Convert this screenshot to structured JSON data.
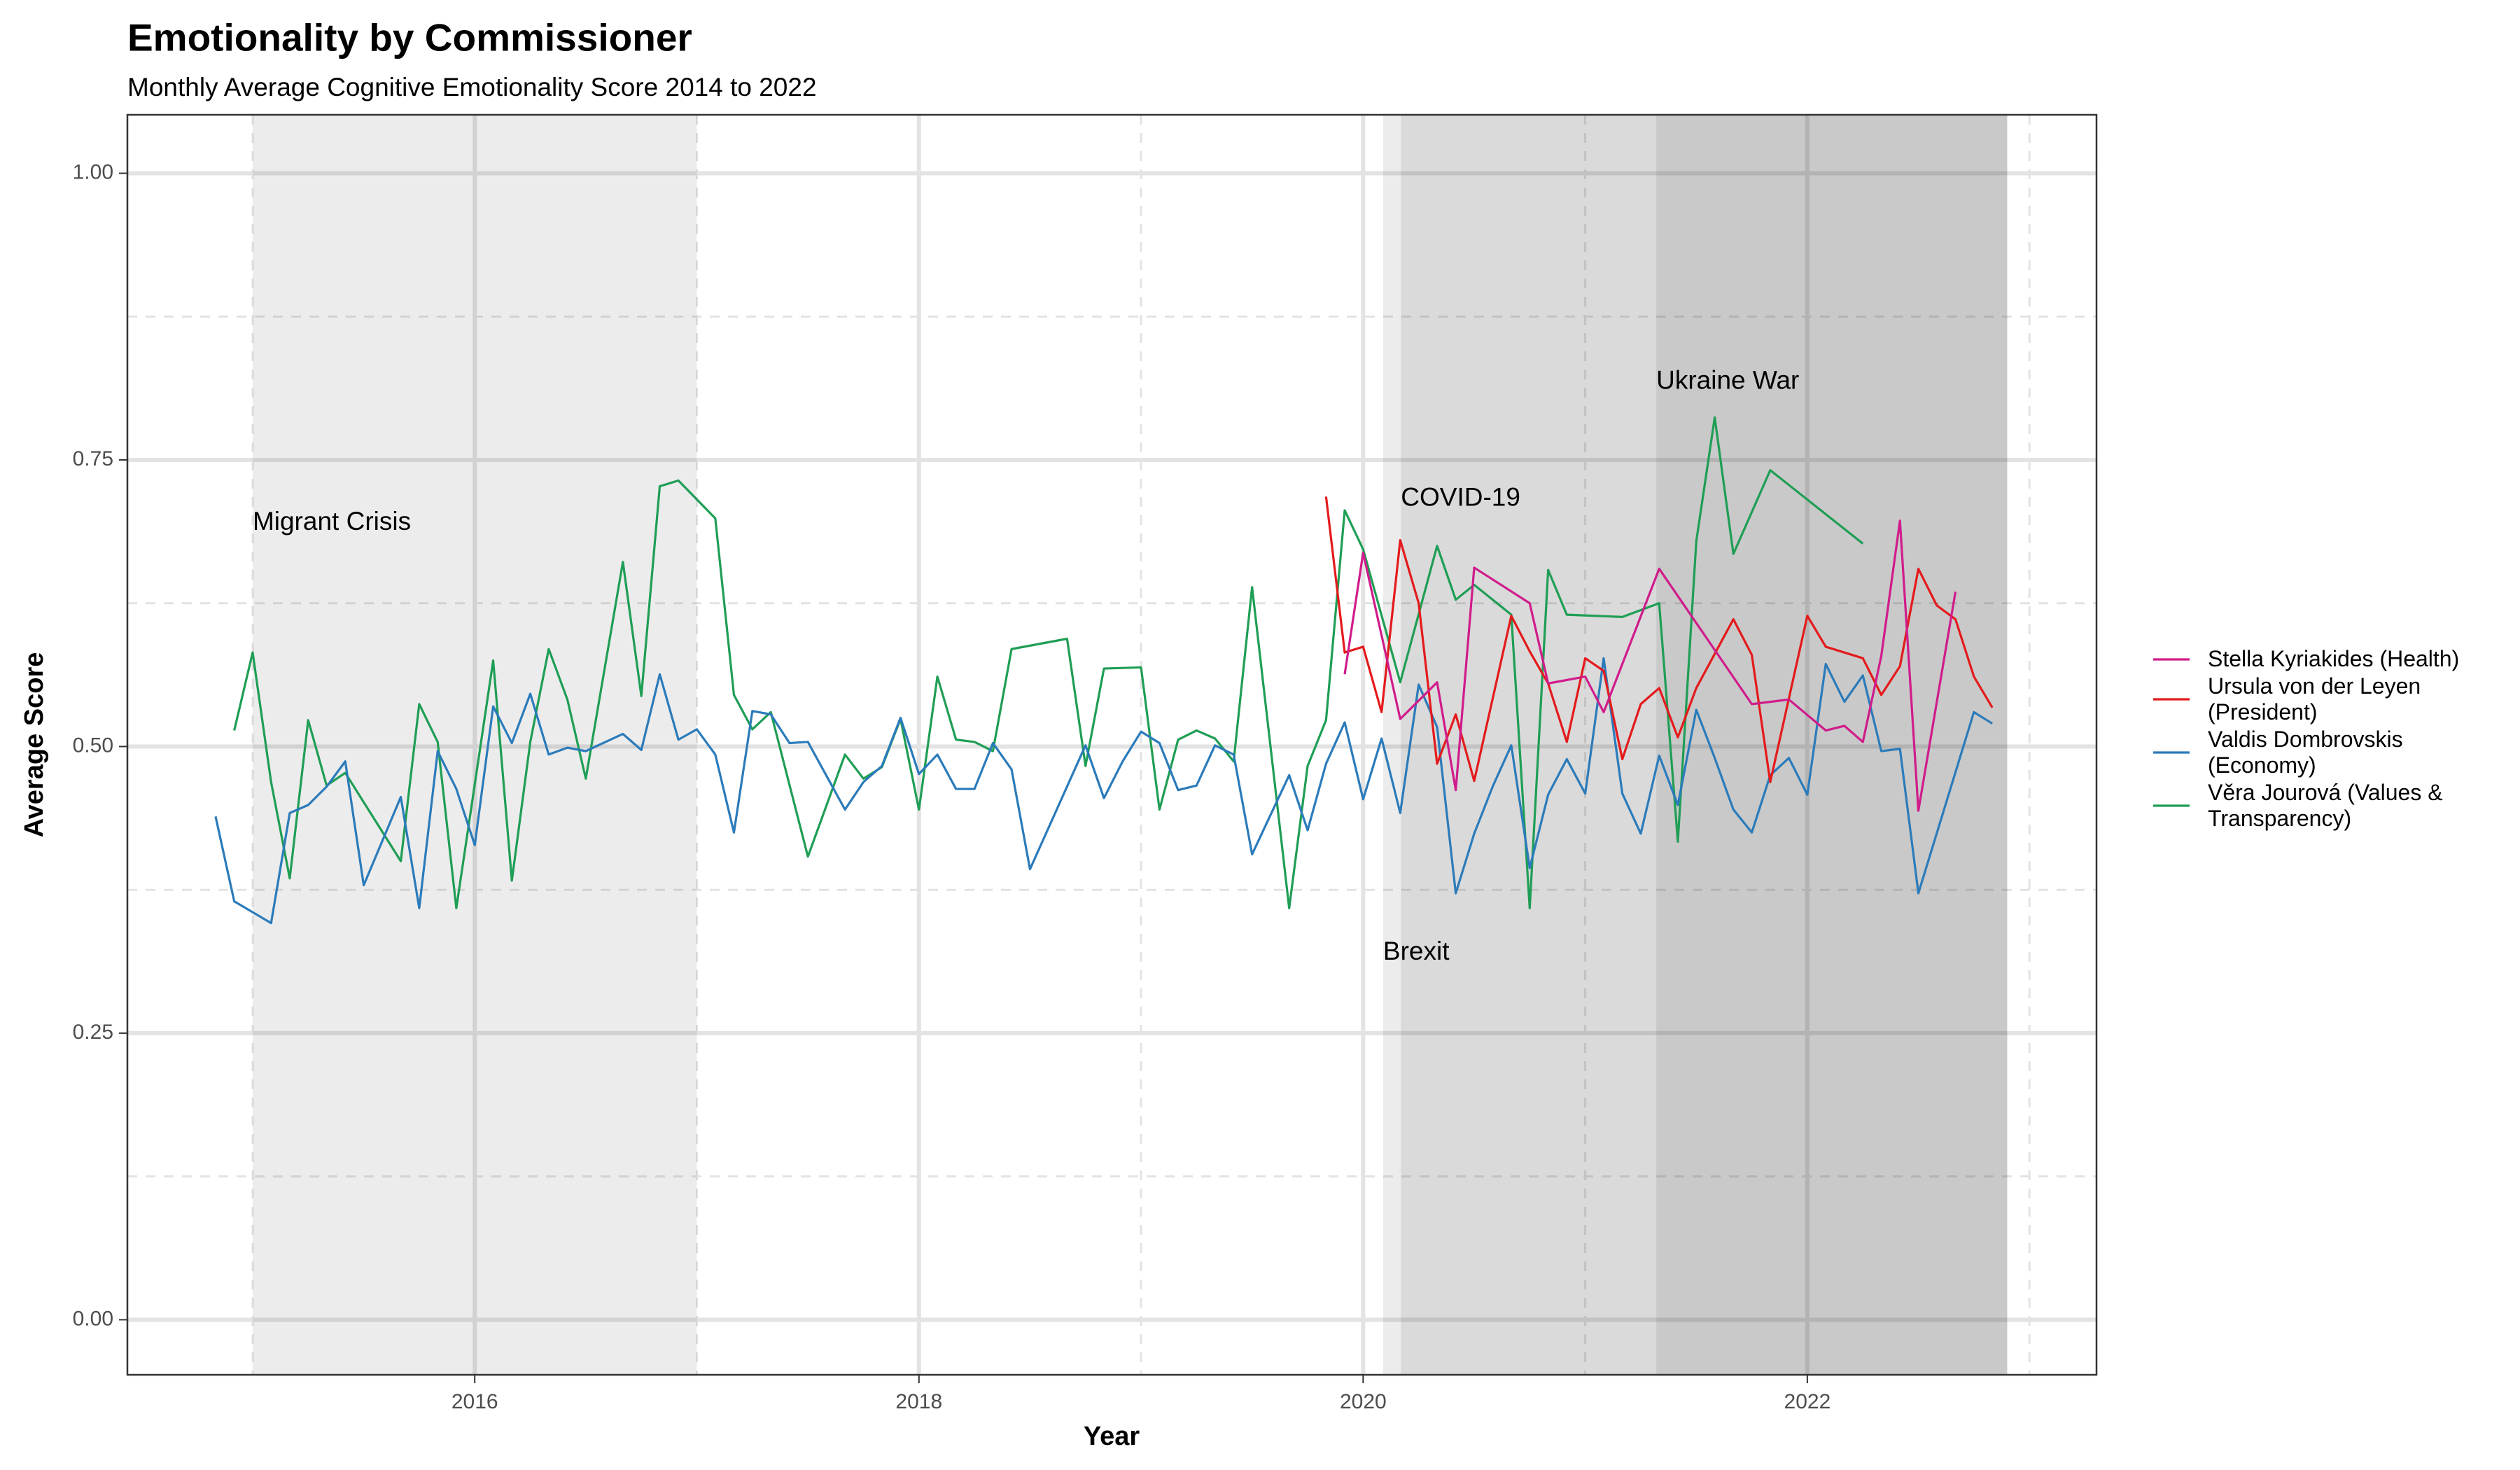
{
  "chart_data": {
    "type": "line",
    "title": "Emotionality by Commissioner",
    "subtitle": "Monthly Average Cognitive Emotionality Score 2014 to 2022",
    "x_label": "Year",
    "y_label": "Average Score",
    "xlim": [
      2014.436,
      2023.302
    ],
    "ylim": [
      -0.048,
      1.051
    ],
    "xticks": [
      2016,
      2018,
      2020,
      2022
    ],
    "yticks": [
      {
        "value": 0,
        "label": "0.00"
      },
      {
        "value": 0.25,
        "label": "0.25"
      },
      {
        "value": 0.5,
        "label": "0.50"
      },
      {
        "value": 0.75,
        "label": "0.75"
      },
      {
        "value": 1,
        "label": "1.00"
      }
    ],
    "xminor": [
      2015,
      2017,
      2019,
      2021,
      2023
    ],
    "yminor": [
      0.125,
      0.375,
      0.625,
      0.875
    ],
    "grid": true,
    "legend": "right",
    "shaded_regions": [
      {
        "label": "Migrant Crisis",
        "xmin": 2015,
        "xmax": 2017,
        "label_y": 0.695
      },
      {
        "label": "Brexit",
        "xmin": 2020.09,
        "xmax": 2022.9,
        "label_y": 0.32
      },
      {
        "label": "COVID-19",
        "xmin": 2020.17,
        "xmax": 2022.9,
        "label_y": 0.716
      },
      {
        "label": "Ukraine War",
        "xmin": 2021.32,
        "xmax": 2022.9,
        "label_y": 0.818
      }
    ],
    "series": [
      {
        "name": "Stella Kyriakides (Health)",
        "color": "#d01c8b",
        "x": [
          2019.917,
          2020,
          2020.167,
          2020.333,
          2020.417,
          2020.5,
          2020.75,
          2020.833,
          2021,
          2021.083,
          2021.333,
          2021.75,
          2021.917,
          2022.083,
          2022.167,
          2022.25,
          2022.333,
          2022.417,
          2022.5,
          2022.667
        ],
        "values": [
          0.563,
          0.669,
          0.524,
          0.556,
          0.462,
          0.656,
          0.625,
          0.555,
          0.561,
          0.53,
          0.655,
          0.537,
          0.541,
          0.514,
          0.518,
          0.504,
          0.579,
          0.697,
          0.444,
          0.635
        ]
      },
      {
        "name": "Ursula von der Leyen (President)",
        "color": "#e41a1c",
        "x": [
          2019.833,
          2019.917,
          2020,
          2020.083,
          2020.167,
          2020.25,
          2020.333,
          2020.417,
          2020.5,
          2020.667,
          2020.75,
          2020.833,
          2020.917,
          2021,
          2021.083,
          2021.167,
          2021.25,
          2021.333,
          2021.417,
          2021.5,
          2021.667,
          2021.75,
          2021.833,
          2022,
          2022.083,
          2022.25,
          2022.333,
          2022.417,
          2022.5,
          2022.583,
          2022.667,
          2022.75,
          2022.833
        ],
        "values": [
          0.718,
          0.582,
          0.587,
          0.53,
          0.68,
          0.625,
          0.485,
          0.528,
          0.47,
          0.614,
          0.583,
          0.555,
          0.504,
          0.577,
          0.566,
          0.489,
          0.537,
          0.551,
          0.508,
          0.551,
          0.611,
          0.58,
          0.469,
          0.614,
          0.587,
          0.577,
          0.545,
          0.57,
          0.655,
          0.623,
          0.611,
          0.561,
          0.534
        ]
      },
      {
        "name": "Valdis Dombrovskis (Economy)",
        "color": "#2b7bba",
        "x": [
          2014.833,
          2014.917,
          2015.083,
          2015.167,
          2015.25,
          2015.333,
          2015.417,
          2015.5,
          2015.667,
          2015.75,
          2015.833,
          2015.917,
          2016,
          2016.083,
          2016.167,
          2016.25,
          2016.333,
          2016.417,
          2016.5,
          2016.667,
          2016.75,
          2016.833,
          2016.917,
          2017,
          2017.083,
          2017.167,
          2017.25,
          2017.333,
          2017.417,
          2017.5,
          2017.667,
          2017.75,
          2017.833,
          2017.917,
          2018,
          2018.083,
          2018.167,
          2018.25,
          2018.333,
          2018.417,
          2018.5,
          2018.75,
          2018.833,
          2018.917,
          2019,
          2019.083,
          2019.167,
          2019.25,
          2019.333,
          2019.417,
          2019.5,
          2019.667,
          2019.75,
          2019.833,
          2019.917,
          2020,
          2020.083,
          2020.167,
          2020.25,
          2020.333,
          2020.417,
          2020.5,
          2020.583,
          2020.667,
          2020.75,
          2020.833,
          2020.917,
          2021,
          2021.083,
          2021.167,
          2021.25,
          2021.333,
          2021.417,
          2021.5,
          2021.583,
          2021.667,
          2021.75,
          2021.833,
          2021.917,
          2022,
          2022.083,
          2022.167,
          2022.25,
          2022.333,
          2022.417,
          2022.5,
          2022.75,
          2022.833
        ],
        "values": [
          0.439,
          0.365,
          0.346,
          0.442,
          0.449,
          0.465,
          0.487,
          0.379,
          0.456,
          0.359,
          0.496,
          0.463,
          0.414,
          0.535,
          0.503,
          0.546,
          0.493,
          0.499,
          0.496,
          0.511,
          0.497,
          0.563,
          0.506,
          0.515,
          0.493,
          0.425,
          0.531,
          0.528,
          0.503,
          0.504,
          0.445,
          0.469,
          0.483,
          0.525,
          0.476,
          0.493,
          0.463,
          0.463,
          0.503,
          0.48,
          0.393,
          0.501,
          0.455,
          0.487,
          0.513,
          0.503,
          0.462,
          0.466,
          0.501,
          0.493,
          0.406,
          0.475,
          0.427,
          0.485,
          0.521,
          0.454,
          0.507,
          0.442,
          0.554,
          0.517,
          0.372,
          0.424,
          0.465,
          0.501,
          0.394,
          0.458,
          0.489,
          0.459,
          0.577,
          0.459,
          0.424,
          0.492,
          0.449,
          0.532,
          0.49,
          0.445,
          0.425,
          0.475,
          0.49,
          0.458,
          0.572,
          0.539,
          0.562,
          0.496,
          0.498,
          0.372,
          0.53,
          0.52
        ]
      },
      {
        "name": "Věra Jourová (Values & Transparency)",
        "color": "#1f9e55",
        "x": [
          2014.917,
          2015,
          2015.083,
          2015.167,
          2015.25,
          2015.333,
          2015.417,
          2015.667,
          2015.75,
          2015.833,
          2015.917,
          2016.083,
          2016.167,
          2016.25,
          2016.333,
          2016.417,
          2016.5,
          2016.667,
          2016.75,
          2016.833,
          2016.917,
          2017.083,
          2017.167,
          2017.25,
          2017.333,
          2017.5,
          2017.667,
          2017.75,
          2017.833,
          2017.917,
          2018,
          2018.083,
          2018.167,
          2018.25,
          2018.333,
          2018.417,
          2018.667,
          2018.75,
          2018.833,
          2019,
          2019.083,
          2019.167,
          2019.25,
          2019.333,
          2019.417,
          2019.5,
          2019.667,
          2019.75,
          2019.833,
          2019.917,
          2020,
          2020.167,
          2020.333,
          2020.417,
          2020.5,
          2020.667,
          2020.75,
          2020.833,
          2020.917,
          2021.167,
          2021.333,
          2021.417,
          2021.5,
          2021.583,
          2021.667,
          2021.833,
          2022.25
        ],
        "values": [
          0.514,
          0.582,
          0.469,
          0.385,
          0.523,
          0.466,
          0.477,
          0.4,
          0.537,
          0.504,
          0.359,
          0.575,
          0.383,
          0.504,
          0.585,
          0.541,
          0.472,
          0.661,
          0.544,
          0.727,
          0.732,
          0.699,
          0.545,
          0.515,
          0.53,
          0.404,
          0.493,
          0.472,
          0.482,
          0.524,
          0.445,
          0.561,
          0.506,
          0.504,
          0.496,
          0.585,
          0.594,
          0.483,
          0.568,
          0.569,
          0.445,
          0.506,
          0.514,
          0.507,
          0.487,
          0.639,
          0.359,
          0.483,
          0.523,
          0.706,
          0.672,
          0.556,
          0.675,
          0.628,
          0.641,
          0.615,
          0.359,
          0.654,
          0.615,
          0.613,
          0.625,
          0.417,
          0.679,
          0.787,
          0.668,
          0.741,
          0.677
        ]
      }
    ]
  }
}
